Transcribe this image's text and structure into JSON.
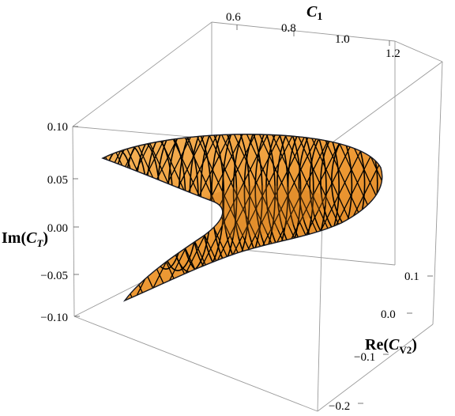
{
  "chart_data": {
    "type": "surface3d",
    "axes": {
      "c1": {
        "label": "C1",
        "ticks": [
          "0.6",
          "0.8",
          "1.0",
          "1.2"
        ],
        "range": [
          0.5,
          1.3
        ]
      },
      "re_cv2": {
        "label": "Re(CV2)",
        "ticks": [
          "0.1",
          "0.0",
          "−0.1",
          "−0.2"
        ],
        "range": [
          -0.25,
          0.15
        ]
      },
      "im_ct": {
        "label": "Im(CT)",
        "ticks": [
          "0.10",
          "0.05",
          "0.00",
          "−0.05",
          "−0.10"
        ],
        "range": [
          -0.12,
          0.11
        ]
      }
    },
    "surface": {
      "description_shape": "crescent / boomerang shaped allowed region",
      "fill_color": "#f0a040",
      "mesh_color": "#000000",
      "edge_color": "#1a3fd6",
      "mesh_lines": 22
    }
  }
}
